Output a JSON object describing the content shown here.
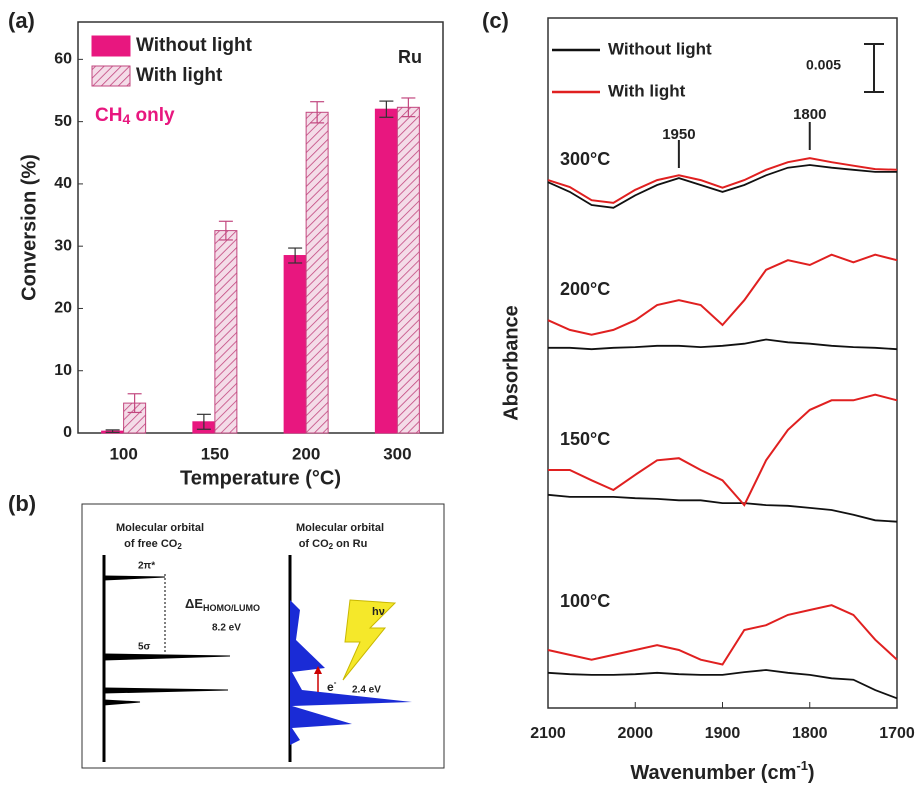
{
  "chart_data": [
    {
      "type": "bar",
      "panel_label": "(a)",
      "xlabel": "Temperature (°C)",
      "ylabel": "Conversion (%)",
      "categories": [
        "100",
        "150",
        "200",
        "300"
      ],
      "series": [
        {
          "name": "Without light",
          "color": "#e8177f",
          "hatch": false,
          "values": [
            0.3,
            1.8,
            28.5,
            52
          ],
          "errors": [
            0.2,
            1.2,
            1.2,
            1.3
          ]
        },
        {
          "name": "With light",
          "color": "#c2477f",
          "hatch": true,
          "values": [
            4.8,
            32.5,
            51.5,
            52.3
          ],
          "errors": [
            1.5,
            1.5,
            1.7,
            1.5
          ]
        }
      ],
      "ylim": [
        0,
        66
      ],
      "yticks": [
        0,
        10,
        20,
        30,
        40,
        50,
        60
      ],
      "annotations": {
        "metal": "Ru",
        "product": "CH",
        "product_sub": "4",
        "product_rest": " only"
      }
    },
    {
      "type": "line",
      "panel_label": "(c)",
      "xlabel": "Wavenumber (cm",
      "xlabel_sup": "-1",
      "xlabel_end": ")",
      "ylabel": "Absorbance",
      "xlim": [
        2100,
        1700
      ],
      "xticks": [
        2100,
        2000,
        1900,
        1800,
        1700
      ],
      "ylim": [
        0,
        100
      ],
      "x": [
        2100,
        2075,
        2050,
        2025,
        2000,
        1975,
        1950,
        1925,
        1900,
        1875,
        1850,
        1825,
        1800,
        1775,
        1750,
        1725,
        1700
      ],
      "temperatures": [
        "300°C",
        "200°C",
        "150°C",
        "100°C"
      ],
      "series": [
        {
          "name": "Without light",
          "color": "#111111",
          "values": [
            [
              76.2,
              74.8,
              72.9,
              72.5,
              74.3,
              75.8,
              76.8,
              75.8,
              74.8,
              75.8,
              77.2,
              78.3,
              78.7,
              78.3,
              78.0,
              77.7,
              77.7
            ],
            [
              52.2,
              52.2,
              52.0,
              52.2,
              52.3,
              52.5,
              52.5,
              52.3,
              52.5,
              52.8,
              53.4,
              53.0,
              52.8,
              52.5,
              52.3,
              52.2,
              52.0
            ],
            [
              30.9,
              30.6,
              30.6,
              30.6,
              30.4,
              30.3,
              30.1,
              30.1,
              29.7,
              29.7,
              29.4,
              29.3,
              29.0,
              28.7,
              28.0,
              27.2,
              27.0
            ],
            [
              5.1,
              4.9,
              4.8,
              4.8,
              4.9,
              5.1,
              4.9,
              4.8,
              4.8,
              5.2,
              5.5,
              5.1,
              4.8,
              4.3,
              4.1,
              2.6,
              1.4
            ]
          ]
        },
        {
          "name": "With light",
          "color": "#e02020",
          "values": [
            [
              76.5,
              75.5,
              73.6,
              73.2,
              75.1,
              76.5,
              77.2,
              76.5,
              75.4,
              76.5,
              78.0,
              79.1,
              79.7,
              79.1,
              78.6,
              78.1,
              78.0
            ],
            [
              56.2,
              54.8,
              54.1,
              54.8,
              56.2,
              58.4,
              59.1,
              58.4,
              55.5,
              59.1,
              63.5,
              64.9,
              64.2,
              65.7,
              64.6,
              65.7,
              64.9
            ],
            [
              34.5,
              34.5,
              33.0,
              31.6,
              33.8,
              35.9,
              36.2,
              34.5,
              33.0,
              29.4,
              35.9,
              40.3,
              43.2,
              44.6,
              44.6,
              45.4,
              44.6
            ],
            [
              8.4,
              7.7,
              7.0,
              7.7,
              8.4,
              9.1,
              8.4,
              7.0,
              6.3,
              11.3,
              12.0,
              13.5,
              14.2,
              14.9,
              13.5,
              9.9,
              7.0
            ]
          ]
        }
      ],
      "peak_marks": [
        1950,
        1800
      ],
      "scale_bar": "0.005"
    }
  ],
  "diagram": {
    "panel_label": "(b)",
    "left_title": [
      "Molecular orbital",
      "of free CO",
      "2"
    ],
    "right_title": [
      "Molecular orbital",
      "of CO",
      "2",
      " on Ru"
    ],
    "lumo": "2π*",
    "homo": "5σ",
    "gap": "ΔE",
    "gap_sub": "HOMO/LUMO",
    "gap_value": "8.2 eV",
    "photon": "hν",
    "electron": "e",
    "electron_sup": "-",
    "transfer": "2.4 eV"
  }
}
